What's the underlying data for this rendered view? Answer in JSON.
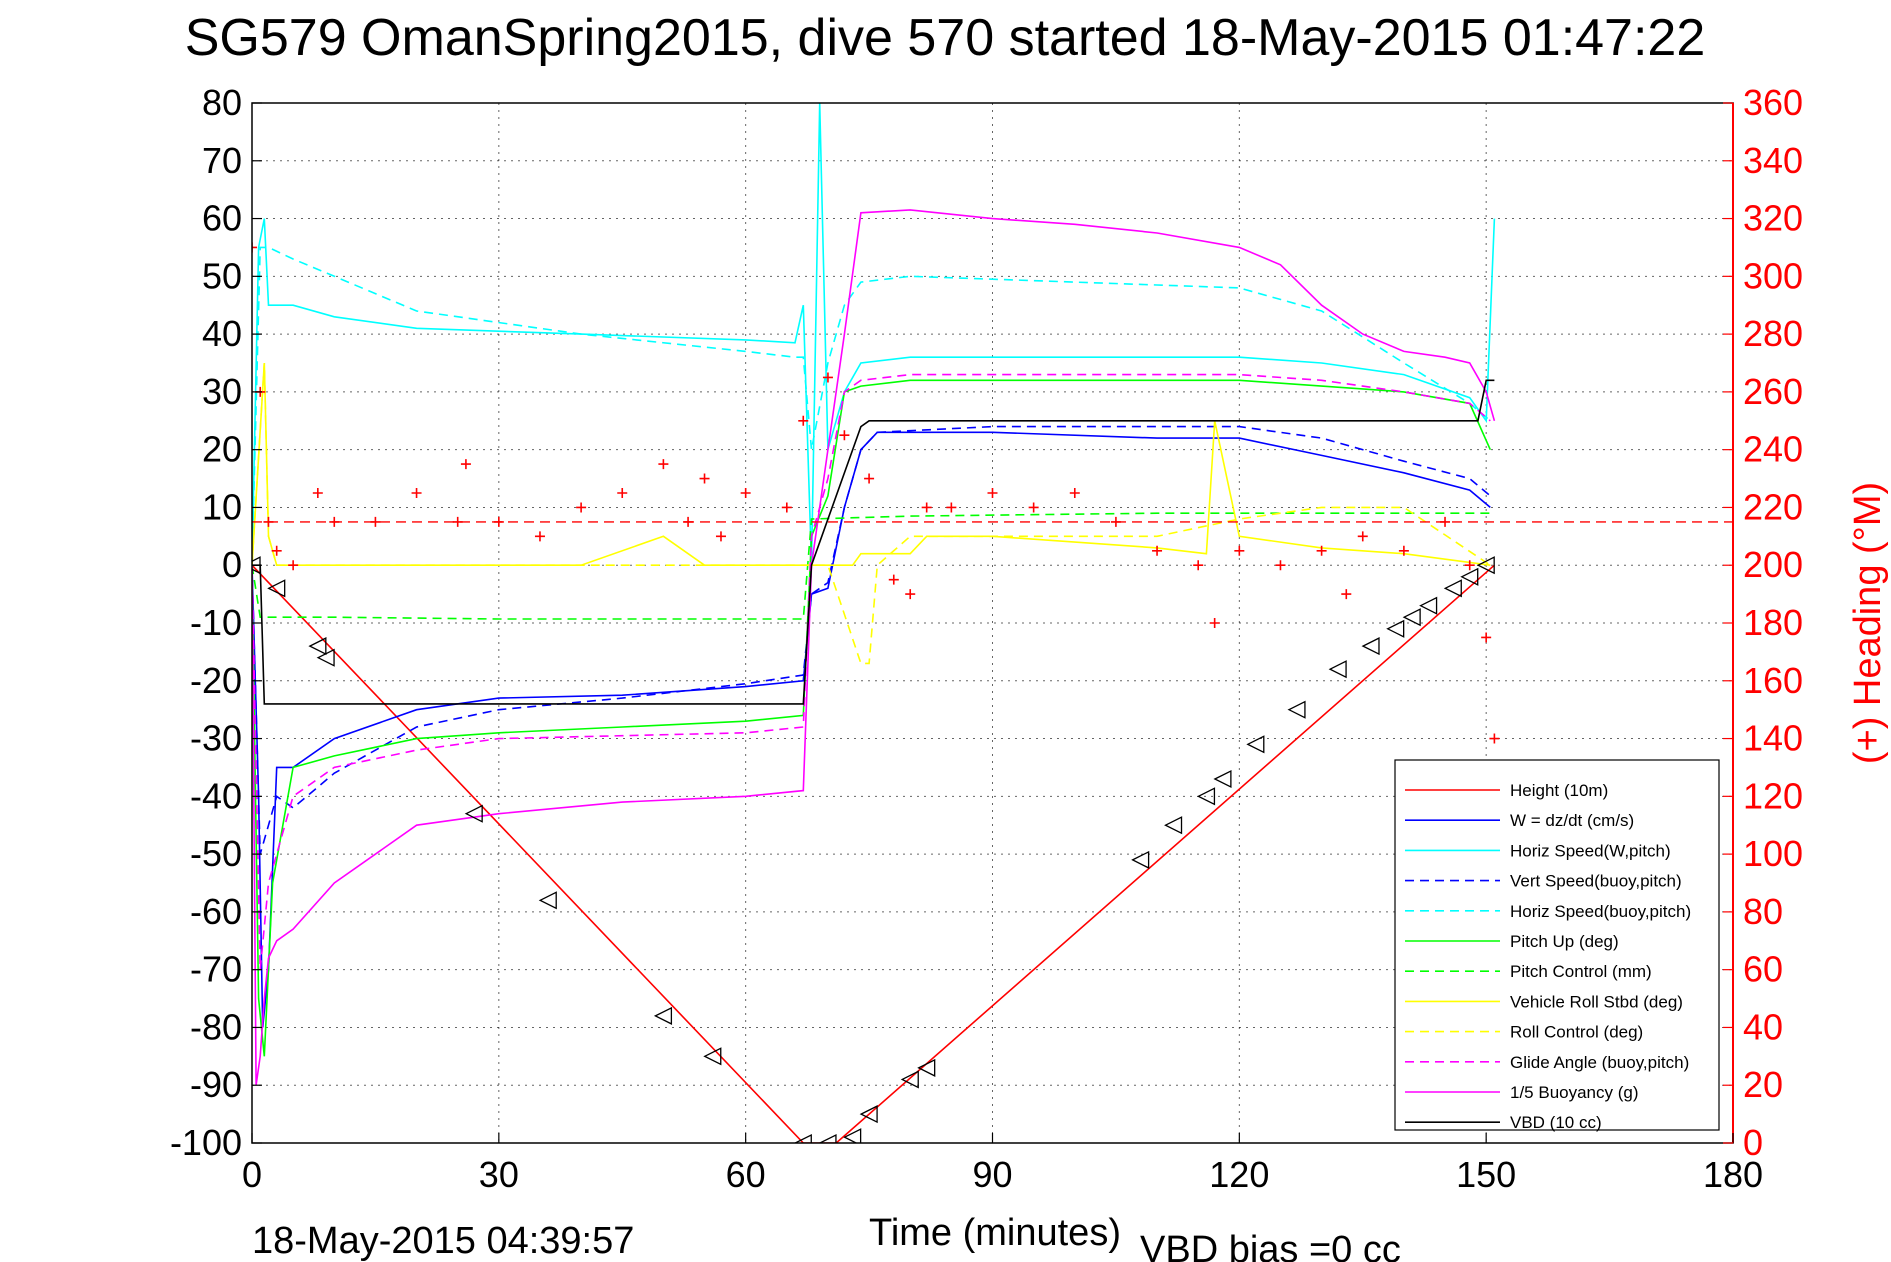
{
  "chart_data": {
    "type": "line",
    "title": "SG579 OmanSpring2015, dive 570 started 18-May-2015 01:47:22",
    "xlabel": "Time (minutes)",
    "ylabel": "",
    "ylabel_right": "(+) Heading (°M)",
    "xlim": [
      0,
      180
    ],
    "ylim": [
      -100,
      80
    ],
    "ylim_right": [
      0,
      360
    ],
    "x_ticks": [
      0,
      30,
      60,
      90,
      120,
      150,
      180
    ],
    "y_ticks": [
      80,
      70,
      60,
      50,
      40,
      30,
      20,
      10,
      0,
      -10,
      -20,
      -30,
      -40,
      -50,
      -60,
      -70,
      -80,
      -90,
      -100
    ],
    "y_ticks_right": [
      360,
      340,
      320,
      300,
      280,
      260,
      240,
      220,
      200,
      180,
      160,
      140,
      120,
      100,
      80,
      60,
      40,
      20,
      0
    ],
    "x_tick_labels": [
      "0",
      "30",
      "60",
      "90",
      "120",
      "150",
      "180"
    ],
    "y_tick_labels": [
      "80",
      "70",
      "60",
      "50",
      "40",
      "30",
      "20",
      "10",
      "0",
      "-10",
      "-20",
      "-30",
      "-40",
      "-50",
      "-60",
      "-70",
      "-80",
      "-90",
      "-100"
    ],
    "y_tick_labels_right": [
      "360",
      "340",
      "320",
      "300",
      "280",
      "260",
      "240",
      "220",
      "200",
      "180",
      "160",
      "140",
      "120",
      "100",
      "80",
      "60",
      "40",
      "20",
      "0"
    ],
    "grid": true,
    "legend_position": "bottom-right",
    "footer_left": "18-May-2015 04:39:57",
    "footer_right": "VBD bias =0 cc",
    "series": [
      {
        "name": "Height (10m)",
        "color": "#ff0000",
        "style": "solid",
        "x": [
          0,
          67,
          71,
          151
        ],
        "y": [
          0,
          -100,
          -100,
          0
        ]
      },
      {
        "name": "W = dz/dt (cm/s)",
        "color": "#0000ff",
        "style": "solid",
        "x": [
          0,
          0.8,
          1.3,
          2,
          3,
          5,
          10,
          20,
          30,
          45,
          60,
          67,
          68,
          70,
          72,
          74,
          76,
          90,
          110,
          120,
          130,
          140,
          148,
          150.5
        ],
        "y": [
          0,
          -40,
          -80,
          -70,
          -35,
          -35,
          -30,
          -25,
          -23,
          -22.5,
          -21,
          -20,
          -5,
          -4,
          10,
          20,
          23,
          23,
          22,
          22,
          19,
          16,
          13,
          10
        ]
      },
      {
        "name": "Horiz Speed(W,pitch)",
        "color": "#00ffff",
        "style": "solid",
        "x": [
          0,
          0.8,
          1.5,
          2,
          5,
          10,
          20,
          40,
          60,
          66,
          67,
          68,
          69,
          70,
          72,
          74,
          80,
          100,
          120,
          130,
          140,
          148,
          150,
          151
        ],
        "y": [
          0,
          55,
          60,
          45,
          45,
          43,
          41,
          40,
          39,
          38.5,
          45,
          0,
          80,
          20,
          30,
          35,
          36,
          36,
          36,
          35,
          33,
          29,
          25,
          60
        ]
      },
      {
        "name": "Vert Speed(buoy,pitch)",
        "color": "#0000ff",
        "style": "dashed",
        "x": [
          0,
          1,
          2,
          3,
          5,
          10,
          20,
          30,
          45,
          60,
          67,
          68,
          70,
          72,
          74,
          76,
          90,
          110,
          120,
          130,
          140,
          148,
          150.5
        ],
        "y": [
          0,
          -50,
          -45,
          -40,
          -42,
          -36,
          -28,
          -25,
          -23,
          -20.5,
          -19,
          -5,
          -3,
          10,
          20,
          23,
          24,
          24,
          24,
          22,
          18,
          15,
          12
        ]
      },
      {
        "name": "Horiz Speed(buoy,pitch)",
        "color": "#00ffff",
        "style": "dashed",
        "x": [
          0,
          1,
          2,
          5,
          10,
          20,
          40,
          60,
          66,
          67,
          68,
          70,
          72,
          74,
          80,
          90,
          100,
          110,
          120,
          130,
          140,
          148,
          150.5
        ],
        "y": [
          0,
          55,
          55,
          53,
          50,
          44,
          40,
          37,
          36,
          36,
          20,
          35,
          45,
          49,
          50,
          49.5,
          49,
          48.5,
          48,
          44,
          35,
          28,
          25
        ]
      },
      {
        "name": "Pitch Up (deg)",
        "color": "#00ff00",
        "style": "solid",
        "x": [
          0,
          0.8,
          1.5,
          2.5,
          5,
          10,
          20,
          30,
          45,
          60,
          67,
          68,
          70,
          72,
          74,
          80,
          90,
          110,
          120,
          130,
          140,
          148,
          150.5
        ],
        "y": [
          0,
          -75,
          -85,
          -55,
          -35,
          -33,
          -30,
          -29,
          -28,
          -27,
          -26,
          5,
          12,
          30,
          31,
          32,
          32,
          32,
          32,
          31,
          30,
          28,
          20
        ]
      },
      {
        "name": "Pitch Control (mm)",
        "color": "#00ff00",
        "style": "dashed",
        "x": [
          0,
          1,
          10,
          30,
          67,
          68,
          80,
          110,
          150.5
        ],
        "y": [
          0,
          -9,
          -9,
          -9.3,
          -9.3,
          8,
          8.5,
          9,
          9
        ]
      },
      {
        "name": "Vehicle Roll Stbd (deg)",
        "color": "#ffff00",
        "style": "solid",
        "x": [
          0,
          1.5,
          2,
          3,
          8,
          20,
          40,
          50,
          55,
          60,
          67,
          70,
          73,
          74,
          80,
          82,
          90,
          100,
          110,
          116,
          117,
          120,
          130,
          140,
          150.5
        ],
        "y": [
          0,
          35,
          5,
          0,
          0,
          0,
          0,
          5,
          0,
          0,
          0,
          0,
          0,
          2,
          2,
          5,
          5,
          4,
          3,
          2,
          25,
          5,
          3,
          2,
          0
        ]
      },
      {
        "name": "Roll Control (deg)",
        "color": "#ffff00",
        "style": "dashed",
        "x": [
          0,
          1.5,
          2,
          3,
          8,
          20,
          40,
          60,
          67,
          70,
          74,
          75,
          76,
          80,
          82,
          100,
          110,
          120,
          130,
          140,
          150.5
        ],
        "y": [
          0,
          35,
          5,
          0,
          0,
          0,
          0,
          0,
          0,
          0,
          -17,
          -17,
          0,
          5,
          5,
          5,
          5,
          8,
          10,
          10,
          0
        ]
      },
      {
        "name": "Glide Angle (buoy,pitch)",
        "color": "#ff00ff",
        "style": "dashed",
        "x": [
          0,
          1,
          2,
          5,
          10,
          20,
          30,
          45,
          60,
          67,
          68,
          70,
          72,
          74,
          80,
          90,
          110,
          120,
          130,
          140,
          148,
          150.5
        ],
        "y": [
          0,
          -70,
          -55,
          -40,
          -35,
          -32,
          -30,
          -29.5,
          -29,
          -28,
          5,
          15,
          30,
          32,
          33,
          33,
          33,
          33,
          32,
          30,
          28,
          25
        ]
      },
      {
        "name": "1/5 Buoyancy (g)",
        "color": "#ff00ff",
        "style": "solid",
        "x": [
          0,
          0.5,
          1,
          1.5,
          2,
          3,
          5,
          10,
          20,
          30,
          45,
          60,
          67,
          68,
          70,
          72,
          74,
          80,
          90,
          100,
          110,
          120,
          125,
          130,
          135,
          140,
          145,
          148,
          150,
          151
        ],
        "y": [
          0,
          -90,
          -85,
          -75,
          -68,
          -65,
          -63,
          -55,
          -45,
          -43,
          -41,
          -40,
          -39,
          0,
          20,
          40,
          61,
          61.5,
          60,
          59,
          57.5,
          55,
          52,
          45,
          40,
          37,
          36,
          35,
          30,
          25
        ]
      },
      {
        "name": "VBD (10 cc)",
        "color": "#000000",
        "style": "solid",
        "x": [
          0,
          1,
          1.5,
          67,
          68,
          74,
          75,
          149,
          150,
          151
        ],
        "y": [
          0,
          0,
          -24,
          -24,
          0,
          24,
          25,
          25,
          32,
          32
        ]
      }
    ],
    "heading_points_right": {
      "name": "(+) Heading",
      "color": "#ff0000",
      "marker": "plus",
      "x": [
        0,
        1,
        2,
        3,
        5,
        8,
        10,
        15,
        20,
        25,
        26,
        30,
        35,
        40,
        45,
        50,
        53,
        55,
        57,
        60,
        65,
        67,
        70,
        72,
        75,
        78,
        80,
        82,
        85,
        90,
        95,
        100,
        105,
        110,
        115,
        117,
        120,
        125,
        130,
        133,
        135,
        140,
        145,
        148,
        150,
        151
      ],
      "y": [
        310,
        260,
        215,
        205,
        200,
        225,
        215,
        215,
        225,
        215,
        235,
        215,
        210,
        220,
        225,
        235,
        215,
        230,
        210,
        225,
        220,
        250,
        265,
        245,
        230,
        195,
        190,
        220,
        220,
        225,
        220,
        225,
        215,
        205,
        200,
        180,
        205,
        200,
        205,
        190,
        210,
        205,
        215,
        200,
        175,
        140
      ]
    },
    "heading_reference_right": {
      "y": 215,
      "color": "#ff0000",
      "style": "dashed"
    },
    "height_markers": {
      "marker": "triangle-left",
      "color": "#000000",
      "x": [
        0,
        3,
        8,
        9,
        27,
        36,
        50,
        56,
        67,
        70,
        73,
        75,
        80,
        82,
        108,
        112,
        116,
        118,
        122,
        127,
        132,
        136,
        139,
        141,
        143,
        146,
        148,
        150
      ],
      "y": [
        0,
        -4,
        -14,
        -16,
        -43,
        -58,
        -78,
        -85,
        -100,
        -100,
        -99,
        -95,
        -89,
        -87,
        -51,
        -45,
        -40,
        -37,
        -31,
        -25,
        -18,
        -14,
        -11,
        -9,
        -7,
        -4,
        -2,
        0
      ]
    }
  }
}
